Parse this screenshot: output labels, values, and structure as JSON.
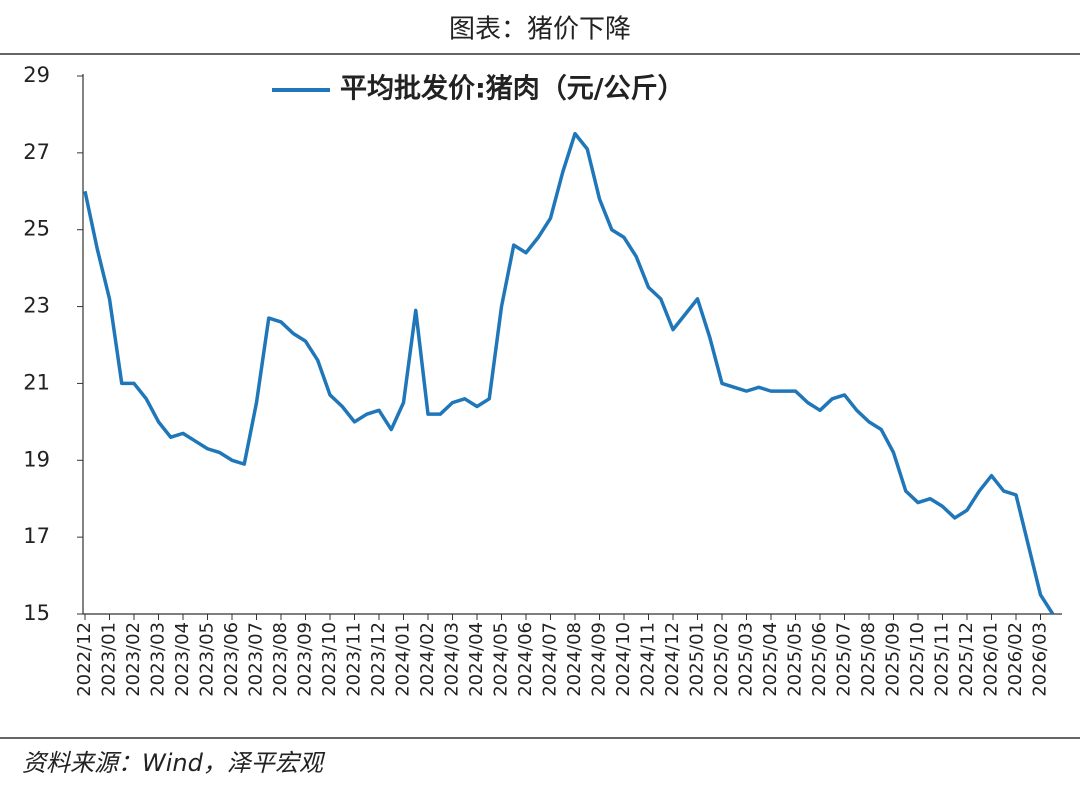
{
  "chart_data": {
    "type": "line",
    "title": "图表：猪价下降",
    "source": "资料来源：Wind，泽平宏观",
    "categories": [
      "2022/12",
      null,
      "2023/01",
      null,
      "2023/02",
      null,
      "2023/03",
      null,
      "2023/04",
      null,
      "2023/05",
      null,
      "2023/06",
      null,
      "2023/07",
      null,
      "2023/08",
      null,
      "2023/09",
      null,
      "2023/10",
      null,
      "2023/11",
      null,
      "2023/12",
      null,
      "2024/01",
      null,
      "2024/02",
      null,
      "2024/03",
      null,
      "2024/04",
      null,
      "2024/05",
      null,
      "2024/06",
      null,
      "2024/07",
      null,
      "2024/08",
      null,
      "2024/09",
      null,
      "2024/10",
      null,
      "2024/11",
      null,
      "2024/12",
      null,
      "2025/01",
      null,
      "2025/02",
      null,
      "2025/03",
      null,
      "2025/04",
      null,
      "2025/05",
      null,
      "2025/06",
      null,
      "2025/07",
      null,
      "2025/08",
      null,
      "2025/09",
      null,
      "2025/10",
      null,
      "2025/11",
      null,
      "2025/12",
      null,
      "2026/01",
      null,
      "2026/02",
      null,
      "2026/03",
      null
    ],
    "series": [
      {
        "name": "平均批发价:猪肉（元/公斤）",
        "color": "#1f77b9",
        "values": [
          26.0,
          24.5,
          23.2,
          21.0,
          21.0,
          20.6,
          20.0,
          19.6,
          19.7,
          19.5,
          19.3,
          19.2,
          19.0,
          18.9,
          20.5,
          22.7,
          22.6,
          22.3,
          22.1,
          21.6,
          20.7,
          20.4,
          20.0,
          20.2,
          20.3,
          19.8,
          20.5,
          22.9,
          20.2,
          20.2,
          20.5,
          20.6,
          20.4,
          20.6,
          23.0,
          24.6,
          24.4,
          24.8,
          25.3,
          26.5,
          27.5,
          27.1,
          25.8,
          25.0,
          24.8,
          24.3,
          23.5,
          23.2,
          22.4,
          22.8,
          23.2,
          22.2,
          21.0,
          20.9,
          20.8,
          20.9,
          20.8,
          20.8,
          20.8,
          20.5,
          20.3,
          20.6,
          20.7,
          20.3,
          20.0,
          19.8,
          19.2,
          18.2,
          17.9,
          18.0,
          17.8,
          17.5,
          17.7,
          18.2,
          18.6,
          18.2,
          18.1,
          16.8,
          15.5,
          15.0
        ]
      }
    ],
    "ylim": [
      15,
      29
    ],
    "yticks": [
      15,
      17,
      19,
      21,
      23,
      25,
      27,
      29
    ],
    "grid": false,
    "legend": "top"
  }
}
